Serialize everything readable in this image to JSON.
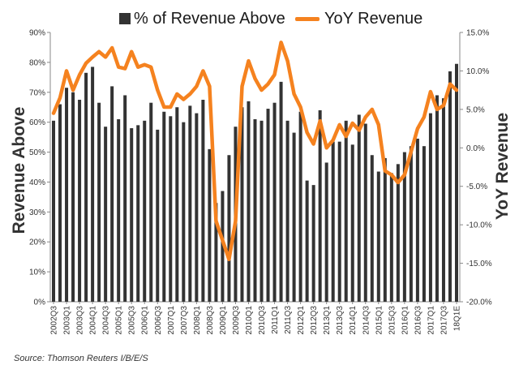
{
  "colors": {
    "bars": "#333333",
    "line": "#f5821f",
    "axis": "#888888",
    "text": "#333333"
  },
  "legend": {
    "bars_label": "% of Revenue Above",
    "line_label": "YoY Revenue"
  },
  "source": "Source: Thomson Reuters I/B/E/S",
  "chart_data": {
    "type": "bar",
    "title": "",
    "ylabel": "Revenue Above",
    "y2label": "YoY Revenue",
    "ylim": [
      0,
      90
    ],
    "y2lim": [
      -20,
      15
    ],
    "y_ticks": [
      "0%",
      "10%",
      "20%",
      "30%",
      "40%",
      "50%",
      "60%",
      "70%",
      "80%",
      "90%"
    ],
    "y2_ticks": [
      "-20.0%",
      "-15.0%",
      "-10.0%",
      "-5.0%",
      "0.0%",
      "5.0%",
      "10.0%",
      "15.0%"
    ],
    "x_ticks": [
      "2002Q3",
      "2003Q1",
      "2003Q3",
      "2004Q1",
      "2004Q3",
      "2005Q1",
      "2005Q3",
      "2006Q1",
      "2006Q3",
      "2007Q1",
      "2007Q3",
      "2008Q1",
      "2008Q3",
      "2009Q1",
      "2009Q3",
      "2010Q1",
      "2010Q3",
      "2011Q1",
      "2011Q3",
      "2012Q1",
      "2012Q3",
      "2013Q1",
      "2013Q3",
      "2014Q1",
      "2014Q3",
      "2015Q1",
      "2015Q3",
      "2016Q1",
      "2016Q3",
      "2017Q1",
      "2017Q3",
      "18Q1E"
    ],
    "categories": [
      "2002Q3",
      "2002Q4",
      "2003Q1",
      "2003Q2",
      "2003Q3",
      "2003Q4",
      "2004Q1",
      "2004Q2",
      "2004Q3",
      "2004Q4",
      "2005Q1",
      "2005Q2",
      "2005Q3",
      "2005Q4",
      "2006Q1",
      "2006Q2",
      "2006Q3",
      "2006Q4",
      "2007Q1",
      "2007Q2",
      "2007Q3",
      "2007Q4",
      "2008Q1",
      "2008Q2",
      "2008Q3",
      "2008Q4",
      "2009Q1",
      "2009Q2",
      "2009Q3",
      "2009Q4",
      "2010Q1",
      "2010Q2",
      "2010Q3",
      "2010Q4",
      "2011Q1",
      "2011Q2",
      "2011Q3",
      "2011Q4",
      "2012Q1",
      "2012Q2",
      "2012Q3",
      "2012Q4",
      "2013Q1",
      "2013Q2",
      "2013Q3",
      "2013Q4",
      "2014Q1",
      "2014Q2",
      "2014Q3",
      "2014Q4",
      "2015Q1",
      "2015Q2",
      "2015Q3",
      "2015Q4",
      "2016Q1",
      "2016Q2",
      "2016Q3",
      "2016Q4",
      "2017Q1",
      "2017Q2",
      "2017Q3",
      "2017Q4",
      "18Q1E"
    ],
    "series": [
      {
        "name": "% of Revenue Above",
        "type": "bar",
        "axis": "left",
        "values": [
          60.5,
          66,
          71.5,
          70,
          67.5,
          76.5,
          78.5,
          66.5,
          58.5,
          72,
          61,
          69,
          58,
          59,
          60.5,
          66.5,
          57.5,
          63.5,
          62,
          65,
          60,
          65.5,
          63,
          67.5,
          51,
          33,
          37,
          49,
          58.5,
          65,
          67,
          61,
          60.5,
          64.5,
          66.5,
          73.5,
          60.5,
          56.5,
          63.5,
          40.5,
          39,
          64,
          46.5,
          53.5,
          53.5,
          60.5,
          52.5,
          62.5,
          59.5,
          49,
          43.5,
          48,
          43,
          46,
          50,
          52,
          54.5,
          52,
          63,
          69,
          68,
          77,
          79.5
        ]
      },
      {
        "name": "YoY Revenue",
        "type": "line",
        "axis": "right",
        "values": [
          4.5,
          6.5,
          10,
          7.5,
          9.5,
          11,
          11.8,
          12.5,
          11.8,
          13,
          10.5,
          10.3,
          12.5,
          10.5,
          10.8,
          10.5,
          7.5,
          5.3,
          5.3,
          7,
          6.3,
          7,
          8,
          10,
          8,
          -9.5,
          -12,
          -14.5,
          -9.5,
          8,
          11.3,
          9,
          7.5,
          8.3,
          9.5,
          13.7,
          11.3,
          7,
          5.3,
          2,
          0.5,
          3.5,
          0,
          1,
          3,
          1.5,
          3.2,
          2.3,
          4,
          5,
          3,
          -3,
          -3.5,
          -4.5,
          -3.5,
          -0.5,
          2.5,
          4,
          7.3,
          5,
          5.5,
          8.3,
          7.5
        ]
      }
    ]
  }
}
